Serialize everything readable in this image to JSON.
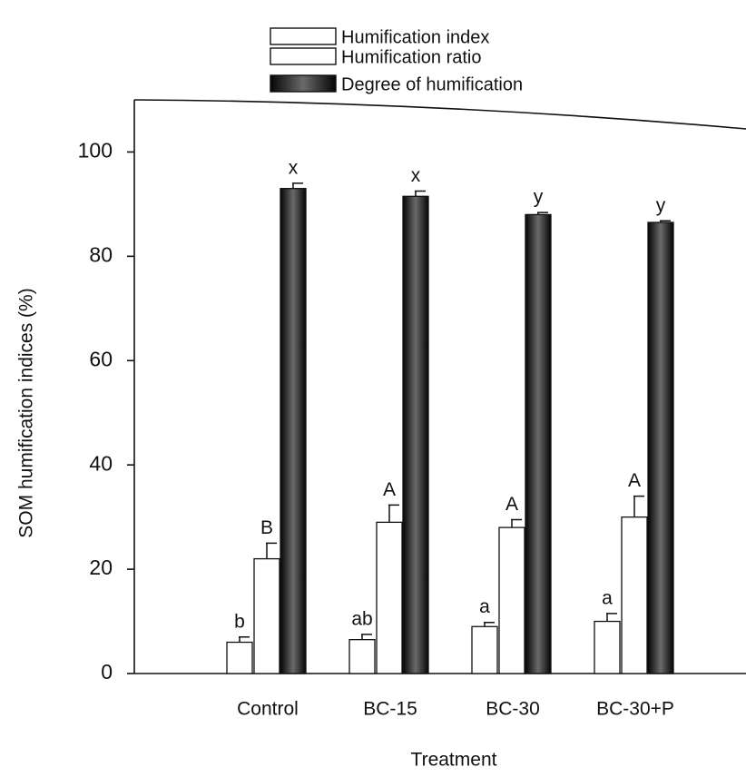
{
  "chart_data": {
    "type": "bar",
    "xlabel": "Treatment",
    "ylabel": "SOM humification indices (%)",
    "categories": [
      "Control",
      "BC-15",
      "BC-30",
      "BC-30+P"
    ],
    "series": [
      {
        "name": "Humification index",
        "color": "#ffffff",
        "values": [
          6,
          6.5,
          9,
          10
        ],
        "errors": [
          1,
          1,
          0.8,
          1.5
        ],
        "letters": [
          "b",
          "ab",
          "a",
          "a"
        ]
      },
      {
        "name": "Humification ratio",
        "color": "#ffffff",
        "values": [
          22,
          29,
          28,
          30
        ],
        "errors": [
          3,
          3.3,
          1.5,
          4
        ],
        "letters": [
          "B",
          "A",
          "A",
          "A"
        ]
      },
      {
        "name": "Degree of humification",
        "color": "#1a1a1a",
        "values": [
          93,
          91.5,
          88,
          86.5
        ],
        "errors": [
          1,
          1,
          0.4,
          0.3
        ],
        "letters": [
          "x",
          "x",
          "y",
          "y"
        ]
      }
    ],
    "ylim": [
      0,
      110
    ],
    "yticks": [
      0,
      20,
      40,
      60,
      80,
      100
    ],
    "grid": false
  }
}
